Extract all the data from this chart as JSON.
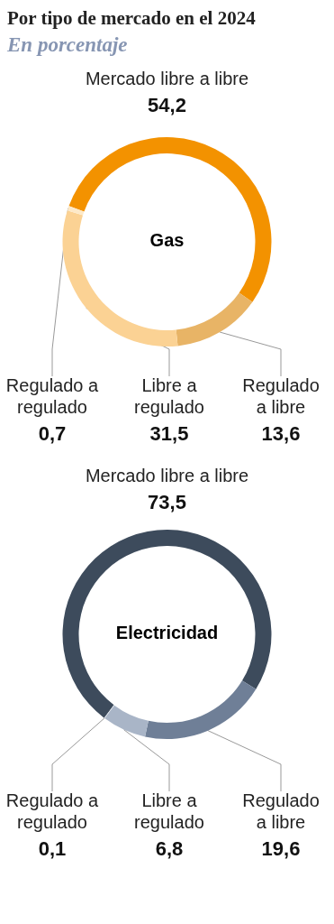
{
  "chart_data": [
    {
      "type": "donut",
      "title": "Por tipo de mercado en el 2024",
      "subtitle": "En porcentaje",
      "annotations": [
        "Gas"
      ],
      "categories": [
        "Mercado libre a libre",
        "Regulado a libre",
        "Libre a regulado",
        "Regulado a regulado"
      ],
      "values": [
        54.2,
        13.6,
        31.5,
        0.7
      ],
      "colors": [
        "#f39200",
        "#e8b466",
        "#fbd294",
        "#fde9c8"
      ],
      "value_labels": [
        "54,2",
        "13,6",
        "31,5",
        "0,7"
      ]
    },
    {
      "type": "donut",
      "annotations": [
        "Electricidad"
      ],
      "categories": [
        "Mercado libre a libre",
        "Regulado a libre",
        "Libre a regulado",
        "Regulado a regulado"
      ],
      "values": [
        73.5,
        19.6,
        6.8,
        0.1
      ],
      "colors": [
        "#3d4b5c",
        "#6f7f97",
        "#a9b5c7",
        "#d5dbe4"
      ],
      "value_labels": [
        "73,5",
        "19,6",
        "6,8",
        "0,1"
      ]
    }
  ]
}
